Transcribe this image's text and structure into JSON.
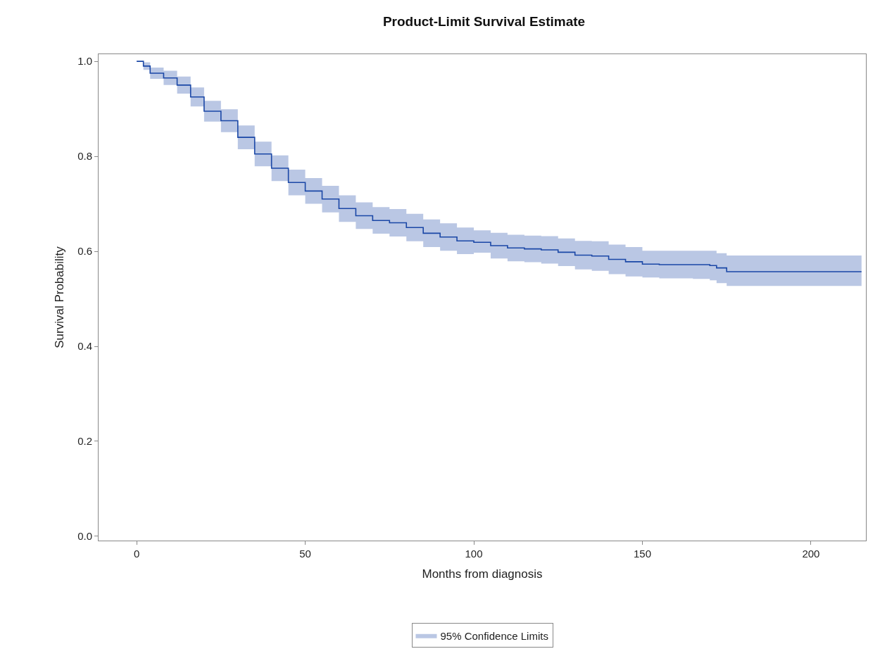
{
  "chart_data": {
    "type": "step",
    "title": "Product-Limit Survival Estimate",
    "xlabel": "Months from diagnosis",
    "ylabel": "Survival Probability",
    "x": [
      0,
      2,
      4,
      8,
      12,
      16,
      20,
      25,
      30,
      35,
      40,
      45,
      50,
      55,
      60,
      65,
      70,
      75,
      80,
      85,
      90,
      95,
      100,
      105,
      110,
      115,
      120,
      125,
      130,
      135,
      140,
      145,
      150,
      155,
      165,
      170,
      172,
      175,
      215
    ],
    "series": [
      {
        "name": "95% Confidence Limits",
        "color": "#1a47a6",
        "values": [
          1.0,
          0.99,
          0.975,
          0.965,
          0.95,
          0.925,
          0.895,
          0.875,
          0.84,
          0.805,
          0.775,
          0.745,
          0.727,
          0.71,
          0.69,
          0.675,
          0.665,
          0.66,
          0.65,
          0.638,
          0.63,
          0.622,
          0.619,
          0.612,
          0.607,
          0.605,
          0.603,
          0.598,
          0.592,
          0.59,
          0.583,
          0.578,
          0.573,
          0.572,
          0.572,
          0.57,
          0.565,
          0.557,
          0.557
        ],
        "lower": [
          1.0,
          0.982,
          0.963,
          0.95,
          0.932,
          0.905,
          0.873,
          0.851,
          0.815,
          0.779,
          0.748,
          0.718,
          0.7,
          0.682,
          0.662,
          0.647,
          0.637,
          0.631,
          0.621,
          0.609,
          0.601,
          0.594,
          0.597,
          0.585,
          0.579,
          0.577,
          0.574,
          0.569,
          0.562,
          0.559,
          0.552,
          0.547,
          0.545,
          0.543,
          0.542,
          0.539,
          0.533,
          0.527,
          0.527
        ],
        "upper": [
          1.0,
          0.998,
          0.987,
          0.98,
          0.968,
          0.945,
          0.917,
          0.899,
          0.865,
          0.831,
          0.802,
          0.772,
          0.754,
          0.738,
          0.718,
          0.703,
          0.693,
          0.689,
          0.679,
          0.667,
          0.659,
          0.65,
          0.644,
          0.639,
          0.635,
          0.633,
          0.632,
          0.627,
          0.622,
          0.621,
          0.614,
          0.609,
          0.601,
          0.601,
          0.601,
          0.601,
          0.596,
          0.591,
          0.591
        ]
      }
    ],
    "xlim": [
      -11.3,
      216.3
    ],
    "xticks": [
      0,
      50,
      100,
      150,
      200
    ],
    "ylim": [
      -0.009,
      1.015
    ],
    "yticks": [
      {
        "value": 0,
        "label": "0.0"
      },
      0.2,
      0.4,
      0.6,
      0.8,
      {
        "value": 1,
        "label": "1.0"
      }
    ],
    "legend": "bottom",
    "line_style": "solid"
  }
}
